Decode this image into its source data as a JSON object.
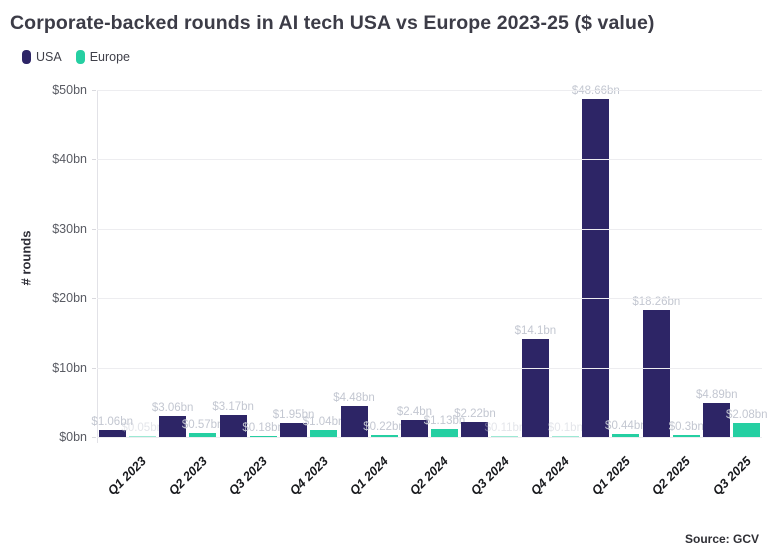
{
  "chart_data": {
    "type": "bar",
    "title": "Corporate-backed rounds in AI tech USA vs Europe 2023-25 ($ value)",
    "ylabel": "# rounds",
    "xlabel": "",
    "ylim": [
      0,
      50
    ],
    "grid": true,
    "legend_position": "top-left",
    "ytick_labels": [
      "$0bn",
      "$10bn",
      "$20bn",
      "$30bn",
      "$40bn",
      "$50bn"
    ],
    "categories": [
      "Q1 2023",
      "Q2 2023",
      "Q3 2023",
      "Q4 2023",
      "Q1 2024",
      "Q2 2024",
      "Q3 2024",
      "Q4 2024",
      "Q1 2025",
      "Q2 2025",
      "Q3 2025"
    ],
    "series": [
      {
        "name": "USA",
        "color": "#2d2566",
        "values": [
          1.06,
          3.06,
          3.17,
          1.95,
          4.48,
          2.4,
          2.22,
          14.1,
          48.66,
          18.26,
          4.89
        ],
        "labels": [
          "$1.06bn",
          "$3.06bn",
          "$3.17bn",
          "$1.95bn",
          "$4.48bn",
          "$2.4bn",
          "$2.22bn",
          "$14.1bn",
          "$48.66bn",
          "$18.26bn",
          "$4.89bn"
        ]
      },
      {
        "name": "Europe",
        "color": "#25cfa2",
        "values": [
          0.05,
          0.57,
          0.18,
          1.04,
          0.22,
          1.13,
          0.11,
          0.1,
          0.44,
          0.3,
          2.08
        ],
        "labels": [
          "$0.05bn",
          "$0.57bn",
          "$0.18bn",
          "$1.04bn",
          "$0.22bn",
          "$1.13bn",
          "$0.11bn",
          "$0.1bn",
          "$0.44bn",
          "$0.3bn",
          "$2.08bn"
        ]
      }
    ],
    "source": "Source: GCV",
    "colors": {
      "background": "#ffffff",
      "grid": "#ededf0",
      "data_label": "#c3c7d1",
      "axis_text": "#595b63"
    }
  }
}
